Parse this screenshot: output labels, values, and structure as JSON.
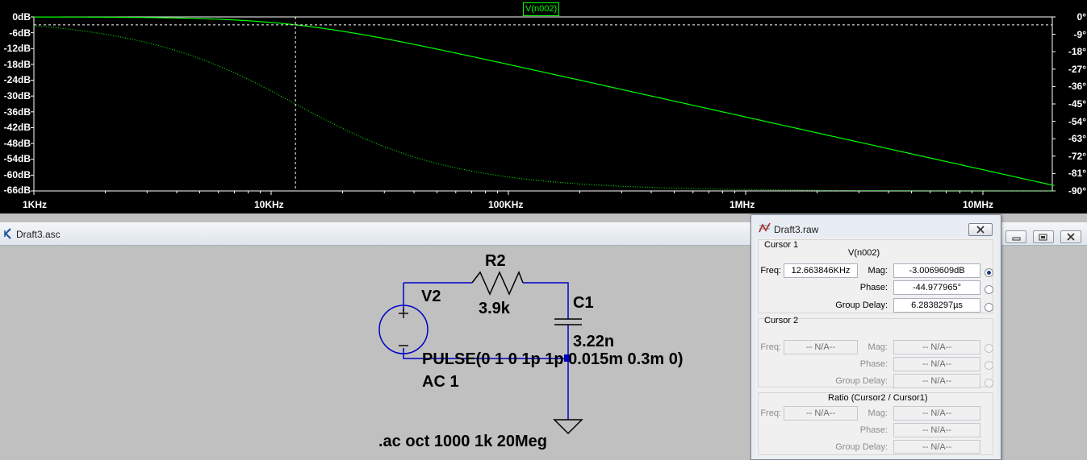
{
  "plot": {
    "trace_label": "V(n002)",
    "left_axis_ticks": [
      "0dB",
      "-6dB",
      "-12dB",
      "-18dB",
      "-24dB",
      "-30dB",
      "-36dB",
      "-42dB",
      "-48dB",
      "-54dB",
      "-60dB",
      "-66dB"
    ],
    "right_axis_ticks": [
      "0°",
      "-9°",
      "-18°",
      "-27°",
      "-36°",
      "-45°",
      "-54°",
      "-63°",
      "-72°",
      "-81°",
      "-90°"
    ],
    "x_axis_ticks": [
      "1KHz",
      "10KHz",
      "100KHz",
      "1MHz",
      "10MHz"
    ],
    "trace_color": "#00ff00",
    "background": "#000000",
    "cursor_freq_khz": 12.663846,
    "cursor_mag_db": -3.0069609
  },
  "chart_data": {
    "type": "line",
    "x_scale": "log",
    "xlim_hz": [
      1000,
      20000000
    ],
    "y_left_lim_db": [
      -66,
      0
    ],
    "y_right_lim_deg": [
      -90,
      0
    ],
    "grid": false,
    "series": [
      {
        "name": "V(n002)",
        "axis": "magnitude (dB)",
        "style": "solid",
        "x_hz": [
          1000,
          3000,
          10000,
          12663.846,
          30000,
          100000,
          1000000,
          10000000,
          20000000
        ],
        "y": [
          -0.02,
          -0.2,
          -1.9,
          -3.0069609,
          -7.9,
          -18.1,
          -38.0,
          -58.0,
          -64.0
        ]
      },
      {
        "name": "V(n002)",
        "axis": "phase (deg)",
        "style": "dotted",
        "x_hz": [
          1000,
          3000,
          10000,
          12663.846,
          30000,
          100000,
          1000000,
          10000000,
          20000000
        ],
        "y": [
          -4.5,
          -13.2,
          -38.3,
          -44.977965,
          -67.2,
          -82.7,
          -88.7,
          -89.9,
          -89.9
        ]
      }
    ]
  },
  "schematic": {
    "window_title": "Draft3.asc",
    "labels": {
      "r2": "R2",
      "r2_value": "3.9k",
      "c1": "C1",
      "c1_value": "3.22n",
      "v2": "V2",
      "v2_value": "PULSE(0 1 0 1p 1p 0.015m 0.3m 0)",
      "v2_ac": "AC 1",
      "directive": ".ac oct 1000 1k 20Meg"
    },
    "wire_color": "#0000c8"
  },
  "cursor_dialog": {
    "title": "Draft3.raw",
    "close_symbol": "✕",
    "cursor1": {
      "title": "Cursor 1",
      "trace": "V(n002)",
      "freq_label": "Freq:",
      "freq_value": "12.663846KHz",
      "mag_label": "Mag:",
      "mag_value": "-3.0069609dB",
      "phase_label": "Phase:",
      "phase_value": "-44.977965°",
      "gd_label": "Group Delay:",
      "gd_value": "6.2838297µs"
    },
    "cursor2": {
      "title": "Cursor 2",
      "freq_label": "Freq:",
      "freq_value": "-- N/A--",
      "mag_label": "Mag:",
      "mag_value": "-- N/A--",
      "phase_label": "Phase:",
      "phase_value": "-- N/A--",
      "gd_label": "Group Delay:",
      "gd_value": "-- N/A--"
    },
    "ratio": {
      "title": "Ratio (Cursor2 / Cursor1)",
      "freq_label": "Freq:",
      "freq_value": "-- N/A--",
      "mag_label": "Mag:",
      "mag_value": "-- N/A--",
      "phase_label": "Phase:",
      "phase_value": "-- N/A--",
      "gd_label": "Group Delay:",
      "gd_value": "-- N/A--"
    }
  }
}
